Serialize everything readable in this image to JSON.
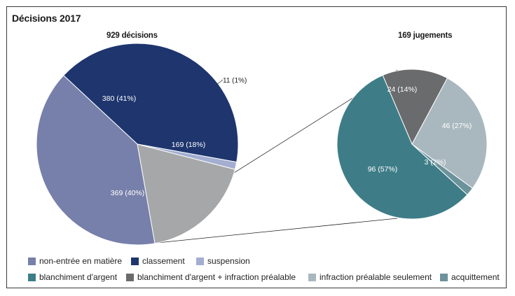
{
  "title": "Décisions 2017",
  "chart_data": [
    {
      "type": "pie",
      "subtitle": "929 décisions",
      "total": 929,
      "slices": [
        {
          "label": "classement",
          "value": 380,
          "text": "380 (41%)",
          "color": "#1e356e"
        },
        {
          "label": "suspension",
          "value": 11,
          "text": "11 (1%)",
          "color": "#a3aed0"
        },
        {
          "label": "169 (18%)",
          "value": 169,
          "text": "169 (18%)",
          "color": "#a6a7a9"
        },
        {
          "label": "non-entrée en matière",
          "value": 369,
          "text": "369 (40%)",
          "color": "#7780aa"
        }
      ]
    },
    {
      "type": "pie",
      "subtitle": "169 jugements",
      "total": 169,
      "slices": [
        {
          "label": "blanchiment d'argent + infraction préalable",
          "value": 24,
          "text": "24 (14%)",
          "color": "#6a6b6d"
        },
        {
          "label": "infraction préalable seulement",
          "value": 46,
          "text": "46 (27%)",
          "color": "#a9b8bf"
        },
        {
          "label": "acquittement",
          "value": 3,
          "text": "3 (2%)",
          "color": "#6c929b"
        },
        {
          "label": "blanchiment d'argent",
          "value": 96,
          "text": "96 (57%)",
          "color": "#3e7d88"
        }
      ]
    }
  ],
  "legend": [
    {
      "label": "non-entrée en matière",
      "color": "#7780aa"
    },
    {
      "label": "classement",
      "color": "#1e356e"
    },
    {
      "label": "suspension",
      "color": "#a3aed0"
    },
    {
      "label": "blanchiment d'argent",
      "color": "#3e7d88"
    },
    {
      "label": "blanchiment d'argent + infraction préalable",
      "color": "#6a6b6d"
    },
    {
      "label": "infraction préalable seulement",
      "color": "#a9b8bf"
    },
    {
      "label": "acquittement",
      "color": "#6c929b"
    }
  ]
}
